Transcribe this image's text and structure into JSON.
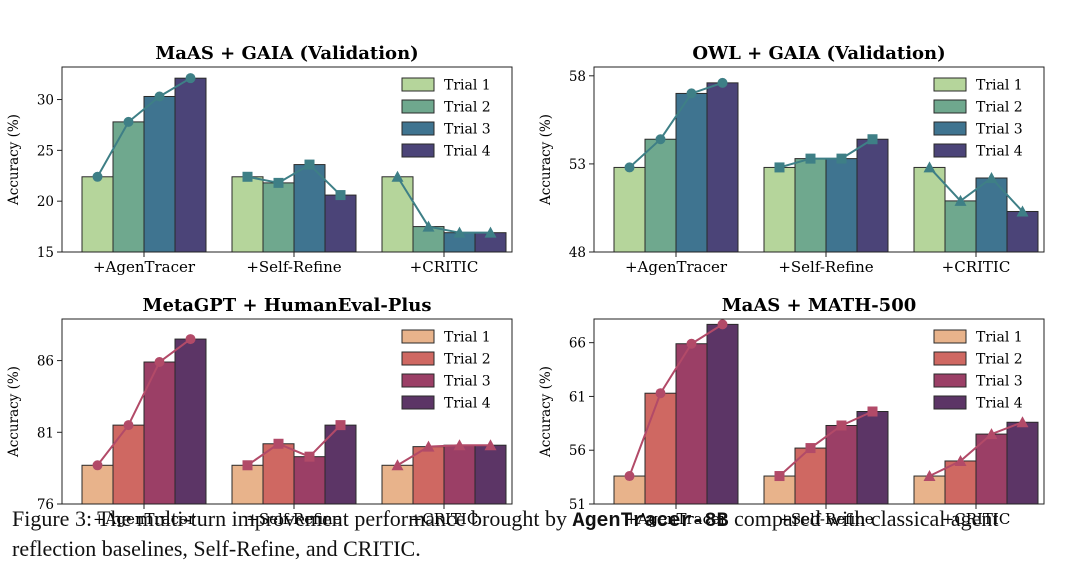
{
  "caption": {
    "prefix": "Figure 3:  The multi-turn improvement performance brought by ",
    "model": "AgenTracer-8B",
    "suffix": " compared with classical agent reflection baselines, Self-Refine, and CRITIC."
  },
  "chart_data": [
    {
      "type": "bar",
      "title": "MaAS + GAIA (Validation)",
      "ylabel": "Accuracy (%)",
      "categories": [
        "+AgenTracer",
        "+Self-Refine",
        "+CRITIC"
      ],
      "ylim": [
        15,
        33.2
      ],
      "yticks": [
        15,
        20,
        25,
        30
      ],
      "legend_position": "top-right",
      "marker": "circle",
      "palette": "green",
      "colors": [
        "#b5d59b",
        "#6fa88e",
        "#3f7490",
        "#4b4478"
      ],
      "line_color": "#3e7f86",
      "series": [
        {
          "name": "Trial 1",
          "values": [
            22.4,
            22.4,
            22.4
          ]
        },
        {
          "name": "Trial 2",
          "values": [
            27.8,
            21.8,
            17.5
          ]
        },
        {
          "name": "Trial 3",
          "values": [
            30.3,
            23.6,
            16.9
          ]
        },
        {
          "name": "Trial 4",
          "values": [
            32.1,
            20.6,
            16.9
          ]
        }
      ]
    },
    {
      "type": "bar",
      "title": "OWL + GAIA (Validation)",
      "ylabel": "Accuracy (%)",
      "categories": [
        "+AgenTracer",
        "+Self-Refine",
        "+CRITIC"
      ],
      "ylim": [
        48,
        58.5
      ],
      "yticks": [
        48,
        53,
        58
      ],
      "legend_position": "top-right",
      "marker": "mixed",
      "palette": "green",
      "colors": [
        "#b5d59b",
        "#6fa88e",
        "#3f7490",
        "#4b4478"
      ],
      "line_color": "#3e7f86",
      "series": [
        {
          "name": "Trial 1",
          "values": [
            52.8,
            52.8,
            52.8
          ]
        },
        {
          "name": "Trial 2",
          "values": [
            54.4,
            53.3,
            50.9
          ]
        },
        {
          "name": "Trial 3",
          "values": [
            57.0,
            53.3,
            52.2
          ]
        },
        {
          "name": "Trial 4",
          "values": [
            57.6,
            54.4,
            50.3
          ]
        }
      ]
    },
    {
      "type": "bar",
      "title": "MetaGPT + HumanEval-Plus",
      "ylabel": "Accuracy (%)",
      "categories": [
        "+AgenTracer",
        "+Self-Refine",
        "+CRITIC"
      ],
      "ylim": [
        76,
        88.9
      ],
      "yticks": [
        76,
        81,
        86
      ],
      "legend_position": "top-right",
      "marker": "mixed",
      "palette": "red",
      "colors": [
        "#e8b38b",
        "#cf6862",
        "#9b3f66",
        "#5c3566"
      ],
      "line_color": "#b24a68",
      "series": [
        {
          "name": "Trial 1",
          "values": [
            78.7,
            78.7,
            78.7
          ]
        },
        {
          "name": "Trial 2",
          "values": [
            81.5,
            80.2,
            80.0
          ]
        },
        {
          "name": "Trial 3",
          "values": [
            85.9,
            79.3,
            80.1
          ]
        },
        {
          "name": "Trial 4",
          "values": [
            87.5,
            81.5,
            80.1
          ]
        }
      ]
    },
    {
      "type": "bar",
      "title": "MaAS + MATH-500",
      "ylabel": "Accuracy (%)",
      "categories": [
        "+AgenTracer",
        "+Self-Refine",
        "+CRITIC"
      ],
      "ylim": [
        51,
        68.2
      ],
      "yticks": [
        51,
        56,
        61,
        66
      ],
      "legend_position": "top-right",
      "marker": "mixed",
      "palette": "red",
      "colors": [
        "#e8b38b",
        "#cf6862",
        "#9b3f66",
        "#5c3566"
      ],
      "line_color": "#b24a68",
      "series": [
        {
          "name": "Trial 1",
          "values": [
            53.6,
            53.6,
            53.6
          ]
        },
        {
          "name": "Trial 2",
          "values": [
            61.3,
            56.2,
            55.0
          ]
        },
        {
          "name": "Trial 3",
          "values": [
            65.9,
            58.3,
            57.5
          ]
        },
        {
          "name": "Trial 4",
          "values": [
            67.7,
            59.6,
            58.6
          ]
        }
      ]
    }
  ]
}
